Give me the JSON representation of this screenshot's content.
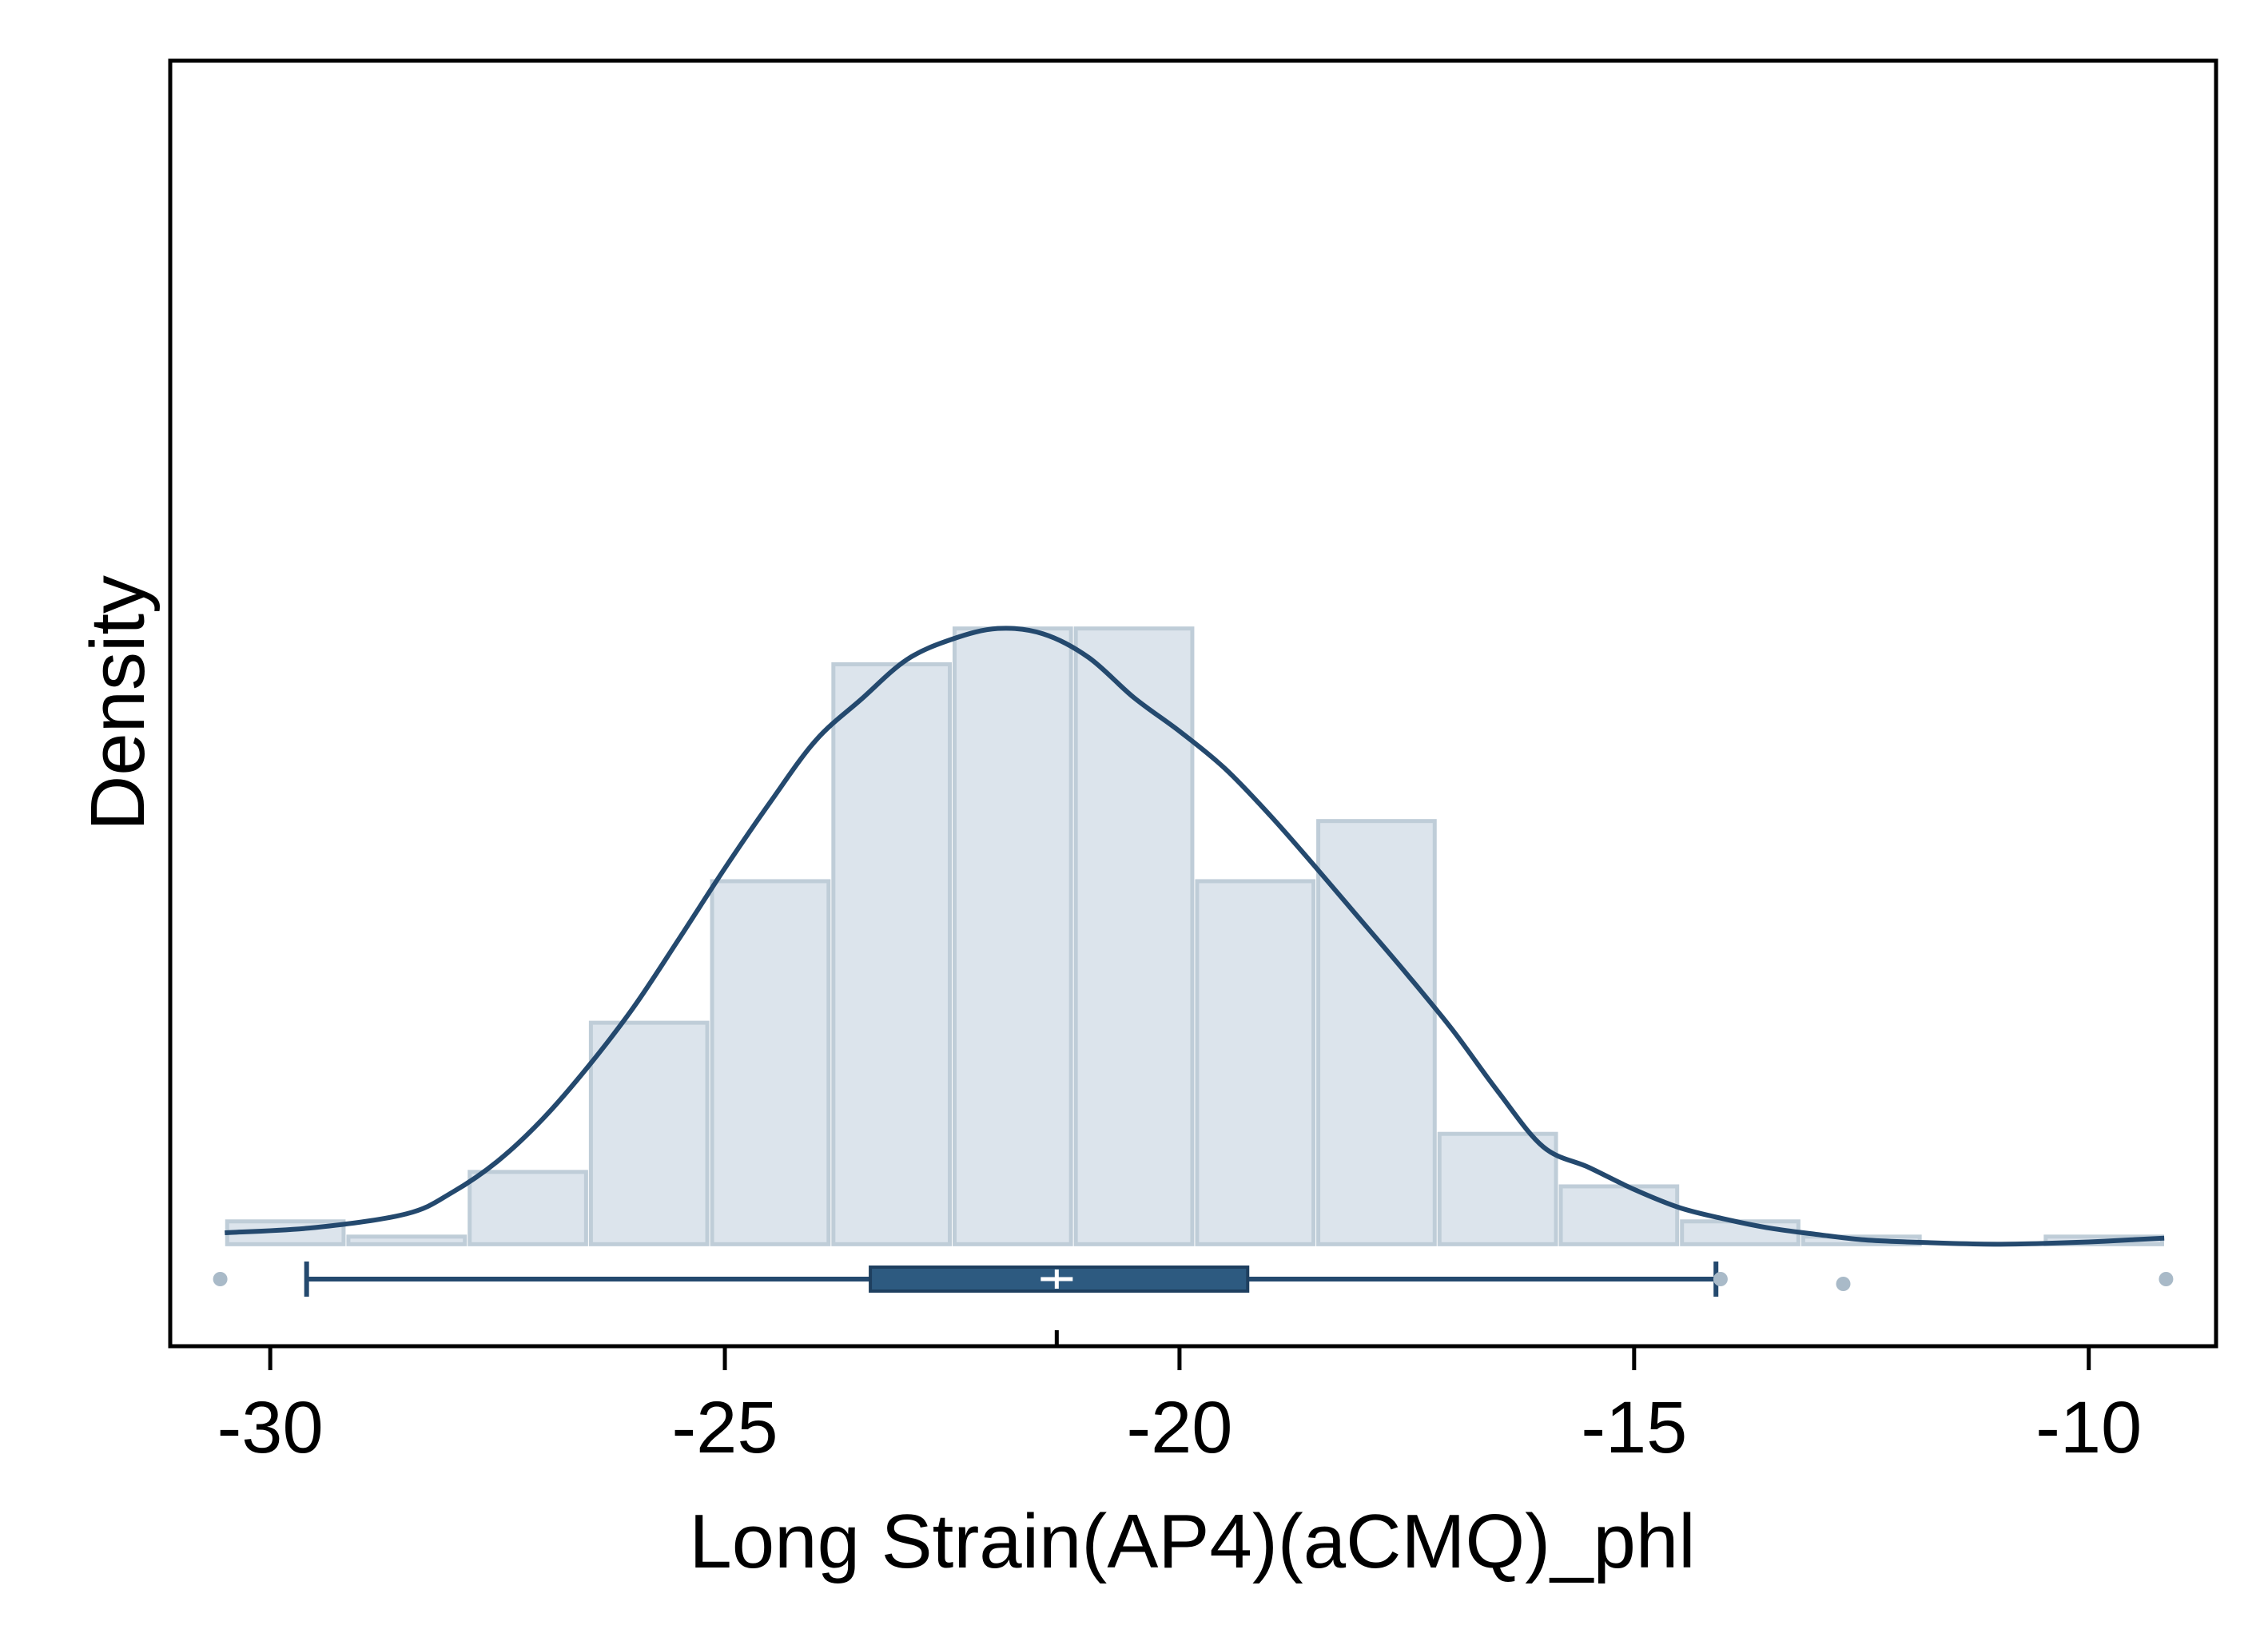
{
  "chart_data": {
    "type": "histogram",
    "title": "",
    "xlabel": "Long Strain(AP4)(aCMQ)_phl",
    "ylabel": "Density",
    "xlim": [
      -31.1,
      -8.6
    ],
    "ylim": [
      -0.0134,
      0.1555
    ],
    "x_ticks": [
      -30,
      -25,
      -20,
      -15,
      -10
    ],
    "x_tick_labels": [
      "-30",
      "-25",
      "-20",
      "-15",
      "-10"
    ],
    "y_ticks_shown": false,
    "grid": false,
    "legend": "none",
    "histogram": {
      "bin_edges": [
        -30.5,
        -29.167,
        -27.833,
        -26.5,
        -25.167,
        -23.833,
        -22.5,
        -21.167,
        -19.833,
        -18.5,
        -17.167,
        -15.833,
        -14.5,
        -13.167,
        -11.833,
        -10.5,
        -9.167
      ],
      "densities": [
        0.003,
        0.001,
        0.0095,
        0.0291,
        0.0477,
        0.0762,
        0.0809,
        0.0809,
        0.0477,
        0.0556,
        0.0145,
        0.0076,
        0.003,
        0.001,
        0.0,
        0.001
      ]
    },
    "kde_curve": {
      "x": [
        -30.5,
        -29.5,
        -28.5,
        -28.0,
        -27.5,
        -27.0,
        -26.5,
        -26.0,
        -25.5,
        -25.0,
        -24.5,
        -24.0,
        -23.5,
        -23.0,
        -22.5,
        -22.0,
        -21.5,
        -21.0,
        -20.5,
        -20.0,
        -19.5,
        -19.0,
        -18.5,
        -18.0,
        -17.5,
        -17.0,
        -16.5,
        -16.0,
        -15.5,
        -15.0,
        -14.5,
        -14.0,
        -13.5,
        -13.0,
        -12.5,
        -12.0,
        -11.5,
        -11.0,
        -10.5,
        -10.0,
        -9.5,
        -9.17
      ],
      "y": [
        0.0015,
        0.0022,
        0.004,
        0.0068,
        0.0109,
        0.0165,
        0.0234,
        0.0312,
        0.0402,
        0.0494,
        0.0581,
        0.0662,
        0.0716,
        0.0768,
        0.0795,
        0.0809,
        0.0802,
        0.0771,
        0.0718,
        0.0674,
        0.0625,
        0.0563,
        0.0495,
        0.0425,
        0.0355,
        0.0282,
        0.0201,
        0.0128,
        0.0101,
        0.0072,
        0.0048,
        0.0033,
        0.0021,
        0.0013,
        0.0006,
        0.0003,
        0.0001,
        0.0,
        0.0001,
        0.0003,
        0.0006,
        0.0008
      ]
    },
    "boxplot": {
      "whisker_low": -29.6,
      "q1": -23.4,
      "median": -21.35,
      "q3": -19.25,
      "whisker_high": -14.1,
      "mean": -21.35,
      "outliers": [
        -30.55,
        -14.05,
        -12.7,
        -9.15
      ]
    },
    "colors": {
      "hist_fill": "#dce4ec",
      "hist_stroke": "#bfcdd8",
      "kde_line": "#24496e",
      "box_fill": "#2d5a80",
      "whisker": "#24496e",
      "outlier": "#a9bac8",
      "axis": "#000000"
    }
  }
}
